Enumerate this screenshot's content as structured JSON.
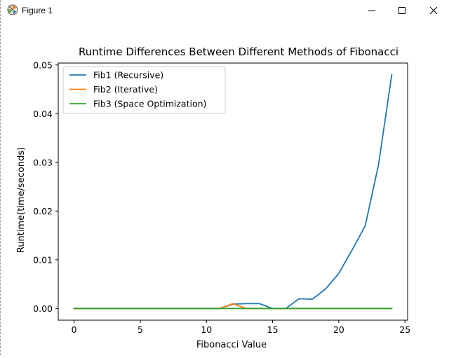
{
  "window": {
    "title": "Figure 1"
  },
  "icons": {
    "app": "matplotlib-icon",
    "minimize": "minimize-icon",
    "maximize": "maximize-icon",
    "close": "close-icon"
  },
  "chart_data": {
    "type": "line",
    "title": "Runtime Differences Between Different Methods of Fibonacci",
    "xlabel": "Fibonacci Value",
    "ylabel": "Runtime(time/seconds)",
    "xlim": [
      -1.2,
      25.2
    ],
    "ylim": [
      -0.0024,
      0.0504
    ],
    "xticks": [
      0,
      5,
      10,
      15,
      20,
      25
    ],
    "xtick_labels": [
      "0",
      "5",
      "10",
      "15",
      "20",
      "25"
    ],
    "yticks": [
      0.0,
      0.01,
      0.02,
      0.03,
      0.04,
      0.05
    ],
    "ytick_labels": [
      "0.00",
      "0.01",
      "0.02",
      "0.03",
      "0.04",
      "0.05"
    ],
    "grid": false,
    "legend_position": "upper-left",
    "series": [
      {
        "name": "Fib1 (Recursive)",
        "color": "#1f77b4",
        "x": [
          0,
          1,
          2,
          3,
          4,
          5,
          6,
          7,
          8,
          9,
          10,
          11,
          12,
          13,
          14,
          15,
          16,
          17,
          18,
          19,
          20,
          21,
          22,
          23,
          24
        ],
        "values": [
          0,
          0,
          0,
          0,
          0,
          0,
          0,
          0,
          0,
          0,
          0,
          0,
          0.0009,
          0.001,
          0.001,
          0,
          0,
          0.002,
          0.0019,
          0.004,
          0.0072,
          0.012,
          0.017,
          0.0295,
          0.048
        ]
      },
      {
        "name": "Fib2 (Iterative)",
        "color": "#ff7f0e",
        "x": [
          0,
          1,
          2,
          3,
          4,
          5,
          6,
          7,
          8,
          9,
          10,
          11,
          12,
          13,
          14,
          15,
          16,
          17,
          18,
          19,
          20,
          21,
          22,
          23,
          24
        ],
        "values": [
          0,
          0,
          0,
          0,
          0,
          0,
          0,
          0,
          0,
          0,
          0,
          0,
          0.001,
          0,
          0,
          0,
          0,
          0,
          0,
          0,
          0,
          0,
          0,
          0,
          0
        ]
      },
      {
        "name": "Fib3 (Space Optimization)",
        "color": "#2ca02c",
        "x": [
          0,
          1,
          2,
          3,
          4,
          5,
          6,
          7,
          8,
          9,
          10,
          11,
          12,
          13,
          14,
          15,
          16,
          17,
          18,
          19,
          20,
          21,
          22,
          23,
          24
        ],
        "values": [
          0,
          0,
          0,
          0,
          0,
          0,
          0,
          0,
          0,
          0,
          0,
          0,
          0,
          0,
          0,
          0,
          0,
          0,
          0,
          0,
          0,
          0,
          0,
          0,
          0
        ]
      }
    ]
  }
}
